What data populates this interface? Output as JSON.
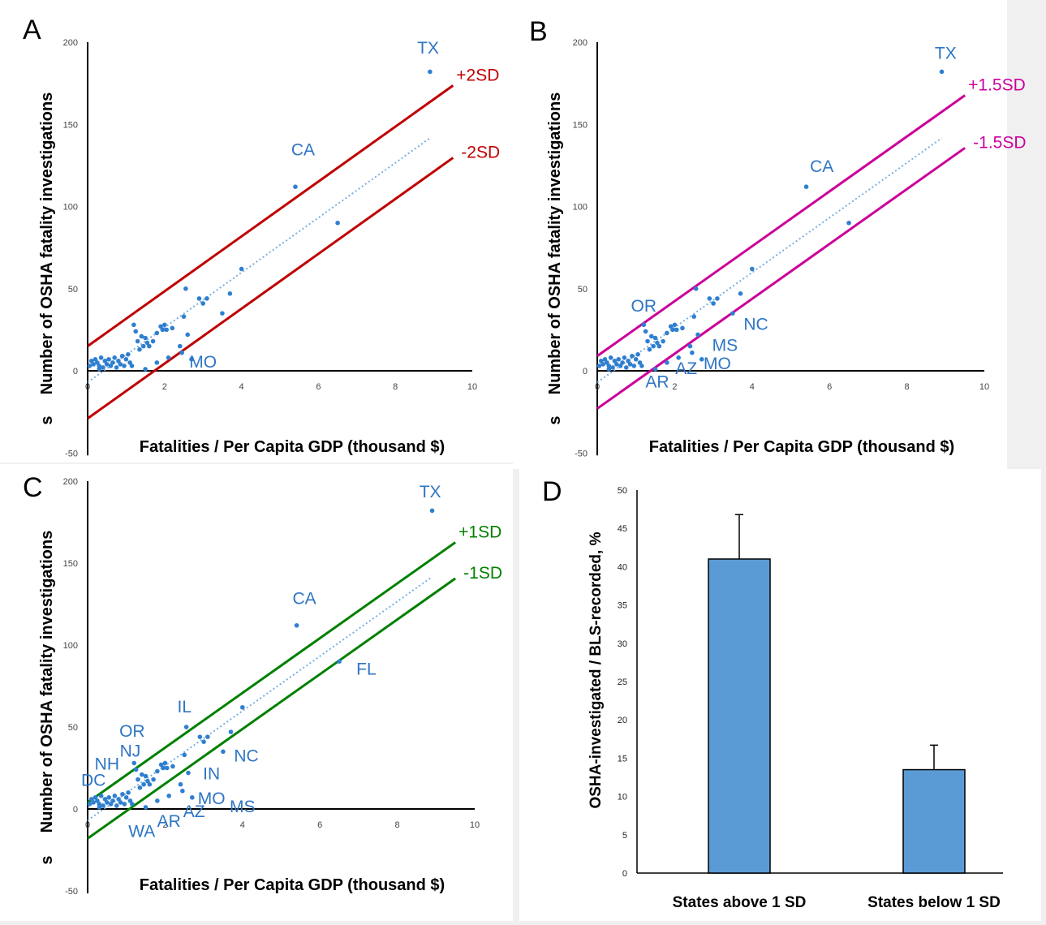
{
  "chart_data": [
    {
      "panel": "A",
      "type": "scatter",
      "xlabel": "Fatalities / Per Capita GDP (thousand $)",
      "ylabel": "Number of OSHA fatality investigations",
      "axis_stub": "s",
      "xlim": [
        0,
        10
      ],
      "ylim": [
        -50,
        200
      ],
      "xticks": [
        "0",
        "2",
        "4",
        "6",
        "8",
        "10"
      ],
      "yticks": [
        "-50",
        "0",
        "50",
        "100",
        "150",
        "200"
      ],
      "band_color": "#c00000",
      "band_offset": 22,
      "fit_line": {
        "slope": 16.7,
        "intercept": -7
      },
      "band_labels": {
        "upper": "+2SD",
        "lower": "-2SD"
      },
      "labels": [
        {
          "text": "TX",
          "x": 8.85,
          "y": 193
        },
        {
          "text": "CA",
          "x": 5.6,
          "y": 131
        },
        {
          "text": "MO",
          "x": 3.0,
          "y": 2
        }
      ]
    },
    {
      "panel": "B",
      "type": "scatter",
      "xlabel": "Fatalities / Per Capita GDP (thousand $)",
      "ylabel": "Number of OSHA fatality investigations",
      "axis_stub": "s",
      "xlim": [
        0,
        10
      ],
      "ylim": [
        -50,
        200
      ],
      "xticks": [
        "0",
        "2",
        "4",
        "6",
        "8",
        "10"
      ],
      "yticks": [
        "-50",
        "0",
        "50",
        "100",
        "150",
        "200"
      ],
      "band_color": "#cc0099",
      "band_offset": 16,
      "fit_line": {
        "slope": 16.7,
        "intercept": -7
      },
      "band_labels": {
        "upper": "+1.5SD",
        "lower": "-1.5SD"
      },
      "labels": [
        {
          "text": "TX",
          "x": 9.0,
          "y": 190
        },
        {
          "text": "CA",
          "x": 5.8,
          "y": 121
        },
        {
          "text": "OR",
          "x": 1.2,
          "y": 36
        },
        {
          "text": "NC",
          "x": 4.1,
          "y": 25
        },
        {
          "text": "MS",
          "x": 3.3,
          "y": 12
        },
        {
          "text": "MO",
          "x": 3.1,
          "y": 1
        },
        {
          "text": "AZ",
          "x": 2.3,
          "y": -2
        },
        {
          "text": "AR",
          "x": 1.55,
          "y": -10
        }
      ]
    },
    {
      "panel": "C",
      "type": "scatter",
      "xlabel": "Fatalities / Per Capita GDP (thousand $)",
      "ylabel": "Number of OSHA fatality investigations",
      "axis_stub": "s",
      "xlim": [
        0,
        10
      ],
      "ylim": [
        -50,
        200
      ],
      "xticks": [
        "0",
        "2",
        "4",
        "6",
        "8",
        "10"
      ],
      "yticks": [
        "-50",
        "0",
        "50",
        "100",
        "150",
        "200"
      ],
      "band_color": "#008000",
      "band_offset": 11,
      "fit_line": {
        "slope": 16.7,
        "intercept": -7
      },
      "band_labels": {
        "upper": "+1SD",
        "lower": "-1SD"
      },
      "labels": [
        {
          "text": "TX",
          "x": 8.85,
          "y": 190
        },
        {
          "text": "CA",
          "x": 5.6,
          "y": 125
        },
        {
          "text": "FL",
          "x": 7.2,
          "y": 82
        },
        {
          "text": "IL",
          "x": 2.5,
          "y": 59
        },
        {
          "text": "OR",
          "x": 1.15,
          "y": 44
        },
        {
          "text": "NJ",
          "x": 1.1,
          "y": 32
        },
        {
          "text": "NH",
          "x": 0.5,
          "y": 24
        },
        {
          "text": "DC",
          "x": 0.15,
          "y": 14
        },
        {
          "text": "NC",
          "x": 4.1,
          "y": 29
        },
        {
          "text": "IN",
          "x": 3.2,
          "y": 18
        },
        {
          "text": "MO",
          "x": 3.2,
          "y": 3
        },
        {
          "text": "MS",
          "x": 4.0,
          "y": -2
        },
        {
          "text": "AZ",
          "x": 2.75,
          "y": -5
        },
        {
          "text": "AR",
          "x": 2.1,
          "y": -11
        },
        {
          "text": "WA",
          "x": 1.4,
          "y": -17
        }
      ]
    },
    {
      "panel": "D",
      "type": "bar",
      "ylabel": "OSHA-investigated / BLS-recorded, %",
      "ylim": [
        0,
        50
      ],
      "yticks": [
        "0",
        "5",
        "10",
        "15",
        "20",
        "25",
        "30",
        "35",
        "40",
        "45",
        "50"
      ],
      "categories": [
        "States above 1 SD",
        "States below 1 SD"
      ],
      "values": [
        41,
        13.5
      ],
      "errors": [
        5.8,
        3.2
      ],
      "bar_color": "#5b9bd5"
    }
  ],
  "scatter_points": [
    [
      0.05,
      3
    ],
    [
      0.1,
      6
    ],
    [
      0.15,
      4
    ],
    [
      0.2,
      7
    ],
    [
      0.25,
      5
    ],
    [
      0.3,
      3
    ],
    [
      0.35,
      8
    ],
    [
      0.4,
      2
    ],
    [
      0.45,
      6
    ],
    [
      0.5,
      4
    ],
    [
      0.55,
      7
    ],
    [
      0.6,
      3
    ],
    [
      0.65,
      5
    ],
    [
      0.7,
      8
    ],
    [
      0.75,
      2
    ],
    [
      0.8,
      6
    ],
    [
      0.85,
      4
    ],
    [
      0.9,
      9
    ],
    [
      0.95,
      3
    ],
    [
      1.0,
      7
    ],
    [
      1.05,
      10
    ],
    [
      1.1,
      5
    ],
    [
      1.15,
      3
    ],
    [
      1.2,
      28
    ],
    [
      1.25,
      24
    ],
    [
      1.3,
      18
    ],
    [
      1.35,
      13
    ],
    [
      1.4,
      21
    ],
    [
      1.45,
      15
    ],
    [
      1.5,
      20
    ],
    [
      1.55,
      17
    ],
    [
      1.6,
      15
    ],
    [
      1.7,
      18
    ],
    [
      1.8,
      23
    ],
    [
      1.9,
      27
    ],
    [
      1.95,
      25
    ],
    [
      2.0,
      28
    ],
    [
      2.05,
      25
    ],
    [
      2.2,
      26
    ],
    [
      2.4,
      15
    ],
    [
      2.45,
      11
    ],
    [
      2.5,
      33
    ],
    [
      2.55,
      50
    ],
    [
      2.6,
      22
    ],
    [
      2.7,
      7
    ],
    [
      2.9,
      44
    ],
    [
      3.0,
      41
    ],
    [
      3.1,
      44
    ],
    [
      3.5,
      35
    ],
    [
      3.7,
      47
    ],
    [
      4.0,
      62
    ],
    [
      5.4,
      112
    ],
    [
      6.5,
      90
    ],
    [
      8.9,
      182
    ],
    [
      1.8,
      5
    ],
    [
      2.1,
      8
    ],
    [
      0.3,
      1
    ],
    [
      1.5,
      1
    ]
  ]
}
